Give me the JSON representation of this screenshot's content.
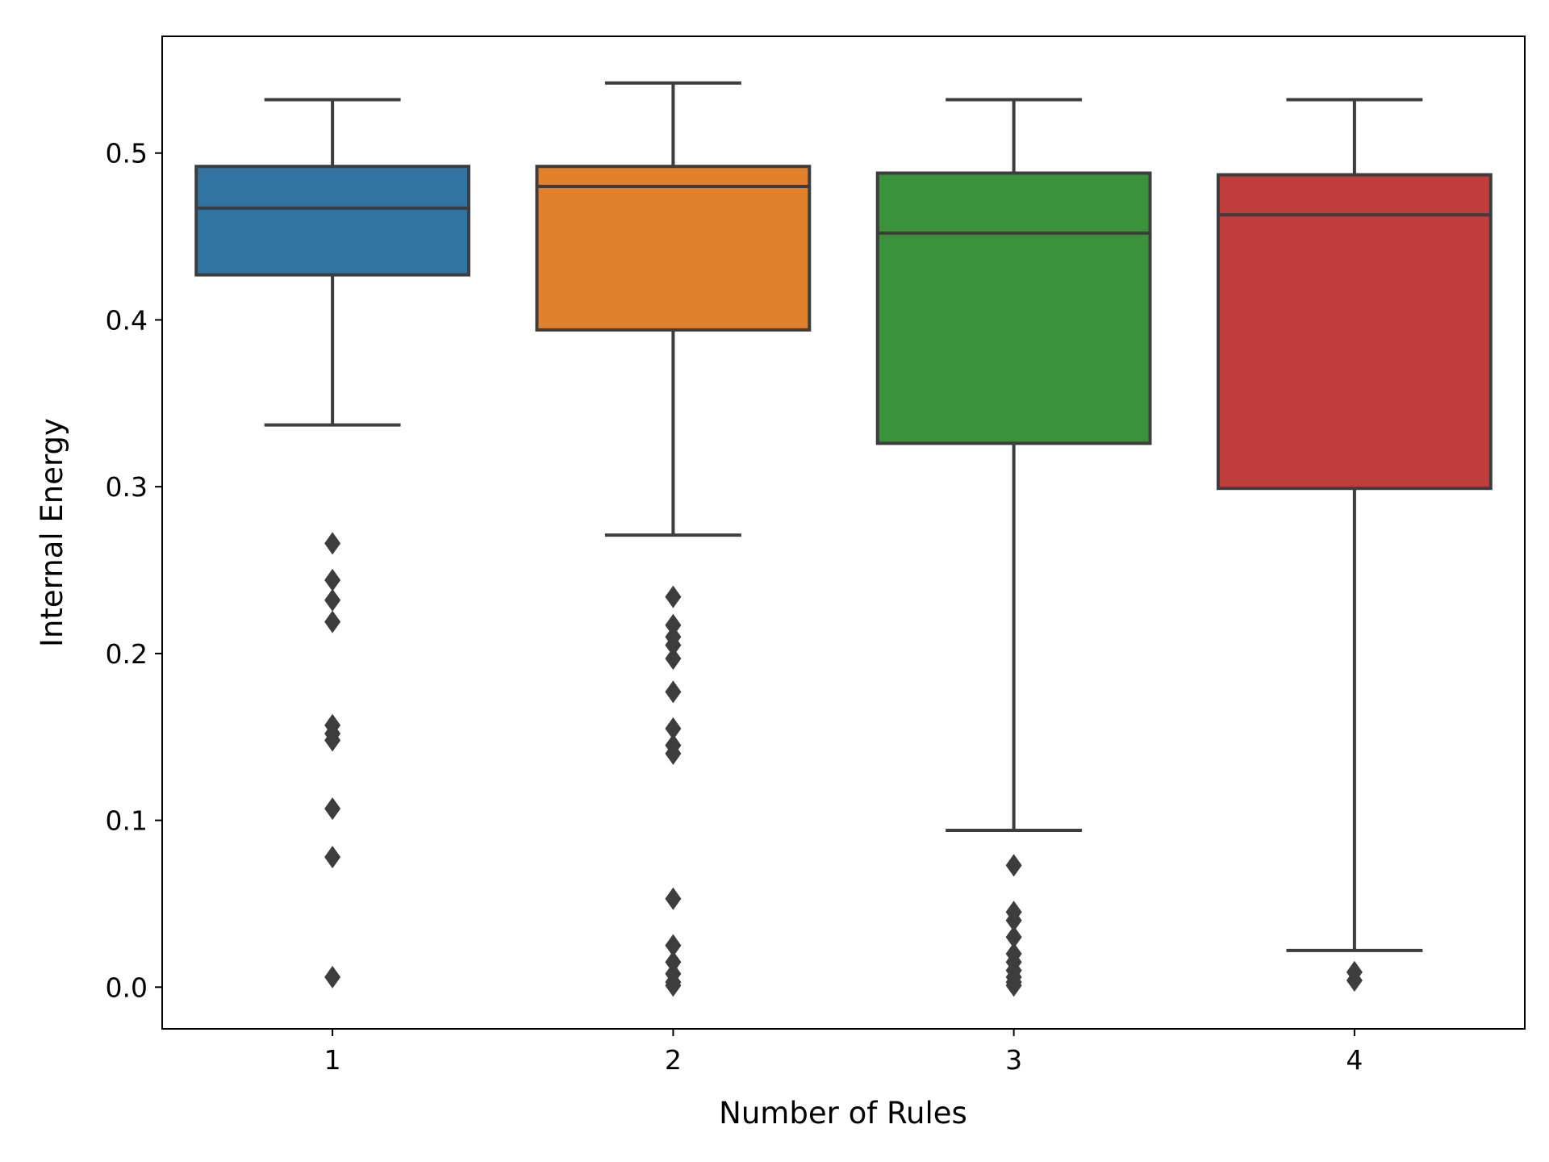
{
  "chart_data": {
    "type": "box",
    "xlabel": "Number of Rules",
    "ylabel": "Internal Energy",
    "ylim": [
      -0.025,
      0.57
    ],
    "yticks": [
      0.0,
      0.1,
      0.2,
      0.3,
      0.4,
      0.5
    ],
    "ytick_labels": [
      "0.0",
      "0.1",
      "0.2",
      "0.3",
      "0.4",
      "0.5"
    ],
    "grid": false,
    "categories": [
      "1",
      "2",
      "3",
      "4"
    ],
    "colors": [
      "#3274a1",
      "#e1812c",
      "#3a923a",
      "#c03d3e"
    ],
    "edge_color": "#3d3d3d",
    "boxes": [
      {
        "category": "1",
        "whisker_low": 0.337,
        "q1": 0.427,
        "median": 0.467,
        "q3": 0.492,
        "whisker_high": 0.532,
        "outliers": [
          0.266,
          0.244,
          0.232,
          0.219,
          0.157,
          0.152,
          0.148,
          0.107,
          0.078,
          0.006
        ]
      },
      {
        "category": "2",
        "whisker_low": 0.271,
        "q1": 0.394,
        "median": 0.48,
        "q3": 0.492,
        "whisker_high": 0.542,
        "outliers": [
          0.234,
          0.217,
          0.21,
          0.205,
          0.197,
          0.177,
          0.155,
          0.145,
          0.14,
          0.053,
          0.025,
          0.015,
          0.008,
          0.003,
          0.001
        ]
      },
      {
        "category": "3",
        "whisker_low": 0.094,
        "q1": 0.326,
        "median": 0.452,
        "q3": 0.488,
        "whisker_high": 0.532,
        "outliers": [
          0.073,
          0.045,
          0.04,
          0.03,
          0.02,
          0.015,
          0.01,
          0.006,
          0.003,
          0.001
        ]
      },
      {
        "category": "4",
        "whisker_low": 0.022,
        "q1": 0.299,
        "median": 0.463,
        "q3": 0.487,
        "whisker_high": 0.532,
        "outliers": [
          0.009,
          0.004
        ]
      }
    ]
  }
}
